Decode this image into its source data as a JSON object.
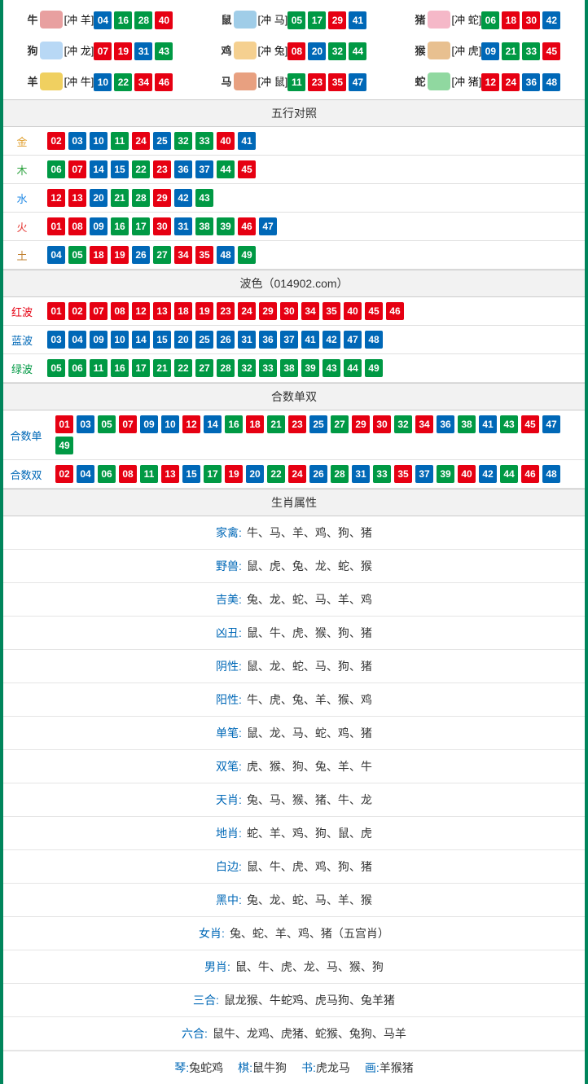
{
  "colors": {
    "red": "#e60012",
    "blue": "#0068b7",
    "green": "#009944",
    "border": "#00855b"
  },
  "zodiac_icon_colors": [
    "#e8a0a0",
    "#a0cde8",
    "#f5b8c8",
    "#b8d8f5",
    "#f5d090",
    "#e8c090",
    "#f0d060",
    "#e8a080",
    "#90d8a0"
  ],
  "zodiac": [
    {
      "name": "牛",
      "conflict": "[冲 羊]",
      "balls": [
        {
          "n": "04",
          "c": "blue"
        },
        {
          "n": "16",
          "c": "green"
        },
        {
          "n": "28",
          "c": "green"
        },
        {
          "n": "40",
          "c": "red"
        }
      ]
    },
    {
      "name": "鼠",
      "conflict": "[冲 马]",
      "balls": [
        {
          "n": "05",
          "c": "green"
        },
        {
          "n": "17",
          "c": "green"
        },
        {
          "n": "29",
          "c": "red"
        },
        {
          "n": "41",
          "c": "blue"
        }
      ]
    },
    {
      "name": "猪",
      "conflict": "[冲 蛇]",
      "balls": [
        {
          "n": "06",
          "c": "green"
        },
        {
          "n": "18",
          "c": "red"
        },
        {
          "n": "30",
          "c": "red"
        },
        {
          "n": "42",
          "c": "blue"
        }
      ]
    },
    {
      "name": "狗",
      "conflict": "[冲 龙]",
      "balls": [
        {
          "n": "07",
          "c": "red"
        },
        {
          "n": "19",
          "c": "red"
        },
        {
          "n": "31",
          "c": "blue"
        },
        {
          "n": "43",
          "c": "green"
        }
      ]
    },
    {
      "name": "鸡",
      "conflict": "[冲 兔]",
      "balls": [
        {
          "n": "08",
          "c": "red"
        },
        {
          "n": "20",
          "c": "blue"
        },
        {
          "n": "32",
          "c": "green"
        },
        {
          "n": "44",
          "c": "green"
        }
      ]
    },
    {
      "name": "猴",
      "conflict": "[冲 虎]",
      "balls": [
        {
          "n": "09",
          "c": "blue"
        },
        {
          "n": "21",
          "c": "green"
        },
        {
          "n": "33",
          "c": "green"
        },
        {
          "n": "45",
          "c": "red"
        }
      ]
    },
    {
      "name": "羊",
      "conflict": "[冲 牛]",
      "balls": [
        {
          "n": "10",
          "c": "blue"
        },
        {
          "n": "22",
          "c": "green"
        },
        {
          "n": "34",
          "c": "red"
        },
        {
          "n": "46",
          "c": "red"
        }
      ]
    },
    {
      "name": "马",
      "conflict": "[冲 鼠]",
      "balls": [
        {
          "n": "11",
          "c": "green"
        },
        {
          "n": "23",
          "c": "red"
        },
        {
          "n": "35",
          "c": "red"
        },
        {
          "n": "47",
          "c": "blue"
        }
      ]
    },
    {
      "name": "蛇",
      "conflict": "[冲 猪]",
      "balls": [
        {
          "n": "12",
          "c": "red"
        },
        {
          "n": "24",
          "c": "red"
        },
        {
          "n": "36",
          "c": "blue"
        },
        {
          "n": "48",
          "c": "blue"
        }
      ]
    }
  ],
  "section_wuxing_title": "五行对照",
  "wuxing": [
    {
      "label": "金",
      "color": "c-gold",
      "balls": [
        {
          "n": "02",
          "c": "red"
        },
        {
          "n": "03",
          "c": "blue"
        },
        {
          "n": "10",
          "c": "blue"
        },
        {
          "n": "11",
          "c": "green"
        },
        {
          "n": "24",
          "c": "red"
        },
        {
          "n": "25",
          "c": "blue"
        },
        {
          "n": "32",
          "c": "green"
        },
        {
          "n": "33",
          "c": "green"
        },
        {
          "n": "40",
          "c": "red"
        },
        {
          "n": "41",
          "c": "blue"
        }
      ]
    },
    {
      "label": "木",
      "color": "c-wood",
      "balls": [
        {
          "n": "06",
          "c": "green"
        },
        {
          "n": "07",
          "c": "red"
        },
        {
          "n": "14",
          "c": "blue"
        },
        {
          "n": "15",
          "c": "blue"
        },
        {
          "n": "22",
          "c": "green"
        },
        {
          "n": "23",
          "c": "red"
        },
        {
          "n": "36",
          "c": "blue"
        },
        {
          "n": "37",
          "c": "blue"
        },
        {
          "n": "44",
          "c": "green"
        },
        {
          "n": "45",
          "c": "red"
        }
      ]
    },
    {
      "label": "水",
      "color": "c-water",
      "balls": [
        {
          "n": "12",
          "c": "red"
        },
        {
          "n": "13",
          "c": "red"
        },
        {
          "n": "20",
          "c": "blue"
        },
        {
          "n": "21",
          "c": "green"
        },
        {
          "n": "28",
          "c": "green"
        },
        {
          "n": "29",
          "c": "red"
        },
        {
          "n": "42",
          "c": "blue"
        },
        {
          "n": "43",
          "c": "green"
        }
      ]
    },
    {
      "label": "火",
      "color": "c-fire",
      "balls": [
        {
          "n": "01",
          "c": "red"
        },
        {
          "n": "08",
          "c": "red"
        },
        {
          "n": "09",
          "c": "blue"
        },
        {
          "n": "16",
          "c": "green"
        },
        {
          "n": "17",
          "c": "green"
        },
        {
          "n": "30",
          "c": "red"
        },
        {
          "n": "31",
          "c": "blue"
        },
        {
          "n": "38",
          "c": "green"
        },
        {
          "n": "39",
          "c": "green"
        },
        {
          "n": "46",
          "c": "red"
        },
        {
          "n": "47",
          "c": "blue"
        }
      ]
    },
    {
      "label": "土",
      "color": "c-earth",
      "balls": [
        {
          "n": "04",
          "c": "blue"
        },
        {
          "n": "05",
          "c": "green"
        },
        {
          "n": "18",
          "c": "red"
        },
        {
          "n": "19",
          "c": "red"
        },
        {
          "n": "26",
          "c": "blue"
        },
        {
          "n": "27",
          "c": "green"
        },
        {
          "n": "34",
          "c": "red"
        },
        {
          "n": "35",
          "c": "red"
        },
        {
          "n": "48",
          "c": "blue"
        },
        {
          "n": "49",
          "c": "green"
        }
      ]
    }
  ],
  "section_bose_title": "波色（014902.com）",
  "bose": [
    {
      "label": "红波",
      "color": "c-red",
      "balls": [
        {
          "n": "01",
          "c": "red"
        },
        {
          "n": "02",
          "c": "red"
        },
        {
          "n": "07",
          "c": "red"
        },
        {
          "n": "08",
          "c": "red"
        },
        {
          "n": "12",
          "c": "red"
        },
        {
          "n": "13",
          "c": "red"
        },
        {
          "n": "18",
          "c": "red"
        },
        {
          "n": "19",
          "c": "red"
        },
        {
          "n": "23",
          "c": "red"
        },
        {
          "n": "24",
          "c": "red"
        },
        {
          "n": "29",
          "c": "red"
        },
        {
          "n": "30",
          "c": "red"
        },
        {
          "n": "34",
          "c": "red"
        },
        {
          "n": "35",
          "c": "red"
        },
        {
          "n": "40",
          "c": "red"
        },
        {
          "n": "45",
          "c": "red"
        },
        {
          "n": "46",
          "c": "red"
        }
      ]
    },
    {
      "label": "蓝波",
      "color": "c-blue",
      "balls": [
        {
          "n": "03",
          "c": "blue"
        },
        {
          "n": "04",
          "c": "blue"
        },
        {
          "n": "09",
          "c": "blue"
        },
        {
          "n": "10",
          "c": "blue"
        },
        {
          "n": "14",
          "c": "blue"
        },
        {
          "n": "15",
          "c": "blue"
        },
        {
          "n": "20",
          "c": "blue"
        },
        {
          "n": "25",
          "c": "blue"
        },
        {
          "n": "26",
          "c": "blue"
        },
        {
          "n": "31",
          "c": "blue"
        },
        {
          "n": "36",
          "c": "blue"
        },
        {
          "n": "37",
          "c": "blue"
        },
        {
          "n": "41",
          "c": "blue"
        },
        {
          "n": "42",
          "c": "blue"
        },
        {
          "n": "47",
          "c": "blue"
        },
        {
          "n": "48",
          "c": "blue"
        }
      ]
    },
    {
      "label": "绿波",
      "color": "c-green",
      "balls": [
        {
          "n": "05",
          "c": "green"
        },
        {
          "n": "06",
          "c": "green"
        },
        {
          "n": "11",
          "c": "green"
        },
        {
          "n": "16",
          "c": "green"
        },
        {
          "n": "17",
          "c": "green"
        },
        {
          "n": "21",
          "c": "green"
        },
        {
          "n": "22",
          "c": "green"
        },
        {
          "n": "27",
          "c": "green"
        },
        {
          "n": "28",
          "c": "green"
        },
        {
          "n": "32",
          "c": "green"
        },
        {
          "n": "33",
          "c": "green"
        },
        {
          "n": "38",
          "c": "green"
        },
        {
          "n": "39",
          "c": "green"
        },
        {
          "n": "43",
          "c": "green"
        },
        {
          "n": "44",
          "c": "green"
        },
        {
          "n": "49",
          "c": "green"
        }
      ]
    }
  ],
  "section_heshu_title": "合数单双",
  "heshu": [
    {
      "label": "合数单",
      "color": "c-blue",
      "balls": [
        {
          "n": "01",
          "c": "red"
        },
        {
          "n": "03",
          "c": "blue"
        },
        {
          "n": "05",
          "c": "green"
        },
        {
          "n": "07",
          "c": "red"
        },
        {
          "n": "09",
          "c": "blue"
        },
        {
          "n": "10",
          "c": "blue"
        },
        {
          "n": "12",
          "c": "red"
        },
        {
          "n": "14",
          "c": "blue"
        },
        {
          "n": "16",
          "c": "green"
        },
        {
          "n": "18",
          "c": "red"
        },
        {
          "n": "21",
          "c": "green"
        },
        {
          "n": "23",
          "c": "red"
        },
        {
          "n": "25",
          "c": "blue"
        },
        {
          "n": "27",
          "c": "green"
        },
        {
          "n": "29",
          "c": "red"
        },
        {
          "n": "30",
          "c": "red"
        },
        {
          "n": "32",
          "c": "green"
        },
        {
          "n": "34",
          "c": "red"
        },
        {
          "n": "36",
          "c": "blue"
        },
        {
          "n": "38",
          "c": "green"
        },
        {
          "n": "41",
          "c": "blue"
        },
        {
          "n": "43",
          "c": "green"
        },
        {
          "n": "45",
          "c": "red"
        },
        {
          "n": "47",
          "c": "blue"
        },
        {
          "n": "49",
          "c": "green"
        }
      ]
    },
    {
      "label": "合数双",
      "color": "c-blue",
      "balls": [
        {
          "n": "02",
          "c": "red"
        },
        {
          "n": "04",
          "c": "blue"
        },
        {
          "n": "06",
          "c": "green"
        },
        {
          "n": "08",
          "c": "red"
        },
        {
          "n": "11",
          "c": "green"
        },
        {
          "n": "13",
          "c": "red"
        },
        {
          "n": "15",
          "c": "blue"
        },
        {
          "n": "17",
          "c": "green"
        },
        {
          "n": "19",
          "c": "red"
        },
        {
          "n": "20",
          "c": "blue"
        },
        {
          "n": "22",
          "c": "green"
        },
        {
          "n": "24",
          "c": "red"
        },
        {
          "n": "26",
          "c": "blue"
        },
        {
          "n": "28",
          "c": "green"
        },
        {
          "n": "31",
          "c": "blue"
        },
        {
          "n": "33",
          "c": "green"
        },
        {
          "n": "35",
          "c": "red"
        },
        {
          "n": "37",
          "c": "blue"
        },
        {
          "n": "39",
          "c": "green"
        },
        {
          "n": "40",
          "c": "red"
        },
        {
          "n": "42",
          "c": "blue"
        },
        {
          "n": "44",
          "c": "green"
        },
        {
          "n": "46",
          "c": "red"
        },
        {
          "n": "48",
          "c": "blue"
        }
      ]
    }
  ],
  "section_attr_title": "生肖属性",
  "attrs": [
    {
      "label": "家禽:",
      "value": "牛、马、羊、鸡、狗、猪"
    },
    {
      "label": "野兽:",
      "value": "鼠、虎、兔、龙、蛇、猴"
    },
    {
      "label": "吉美:",
      "value": "兔、龙、蛇、马、羊、鸡"
    },
    {
      "label": "凶丑:",
      "value": "鼠、牛、虎、猴、狗、猪"
    },
    {
      "label": "阴性:",
      "value": "鼠、龙、蛇、马、狗、猪"
    },
    {
      "label": "阳性:",
      "value": "牛、虎、兔、羊、猴、鸡"
    },
    {
      "label": "单笔:",
      "value": "鼠、龙、马、蛇、鸡、猪"
    },
    {
      "label": "双笔:",
      "value": "虎、猴、狗、兔、羊、牛"
    },
    {
      "label": "天肖:",
      "value": "兔、马、猴、猪、牛、龙"
    },
    {
      "label": "地肖:",
      "value": "蛇、羊、鸡、狗、鼠、虎"
    },
    {
      "label": "白边:",
      "value": "鼠、牛、虎、鸡、狗、猪"
    },
    {
      "label": "黑中:",
      "value": "兔、龙、蛇、马、羊、猴"
    },
    {
      "label": "女肖:",
      "value": "兔、蛇、羊、鸡、猪（五宫肖）"
    },
    {
      "label": "男肖:",
      "value": "鼠、牛、虎、龙、马、猴、狗"
    },
    {
      "label": "三合:",
      "value": "鼠龙猴、牛蛇鸡、虎马狗、兔羊猪"
    },
    {
      "label": "六合:",
      "value": "鼠牛、龙鸡、虎猪、蛇猴、兔狗、马羊"
    }
  ],
  "bottom": [
    {
      "k": "琴:",
      "v": "兔蛇鸡"
    },
    {
      "k": "棋:",
      "v": "鼠牛狗"
    },
    {
      "k": "书:",
      "v": "虎龙马"
    },
    {
      "k": "画:",
      "v": "羊猴猪"
    }
  ]
}
